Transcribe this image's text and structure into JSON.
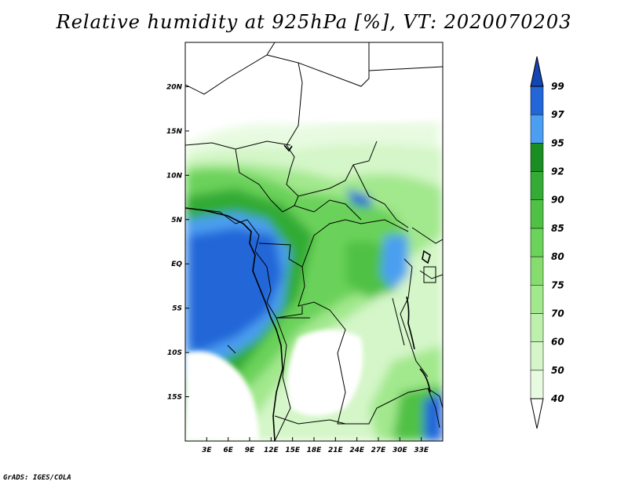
{
  "title": "Relative humidity at 925hPa [%], VT: 2020070203",
  "credit": "GrADS: IGES/COLA",
  "map": {
    "lon_range": [
      0,
      36
    ],
    "lat_range": [
      -20,
      25
    ],
    "lat_ticks": [
      "20N",
      "15N",
      "10N",
      "5N",
      "EQ",
      "5S",
      "10S",
      "15S"
    ],
    "lon_ticks": [
      "3E",
      "6E",
      "9E",
      "12E",
      "15E",
      "18E",
      "21E",
      "24E",
      "27E",
      "30E",
      "33E"
    ]
  },
  "colorbar": {
    "levels": [
      "40",
      "50",
      "60",
      "70",
      "75",
      "80",
      "85",
      "90",
      "92",
      "95",
      "97",
      "99"
    ],
    "colors": [
      "#ffffff",
      "#e8fbe1",
      "#d4f6c8",
      "#bdf0ac",
      "#a2e88d",
      "#86dd6e",
      "#6bd25a",
      "#4fc145",
      "#33ab34",
      "#1b8e23",
      "#4c9ff0",
      "#2266d8",
      "#1346b4"
    ]
  },
  "icons": {
    "colorbar_top": "triangle-up",
    "colorbar_bottom": "triangle-down"
  }
}
